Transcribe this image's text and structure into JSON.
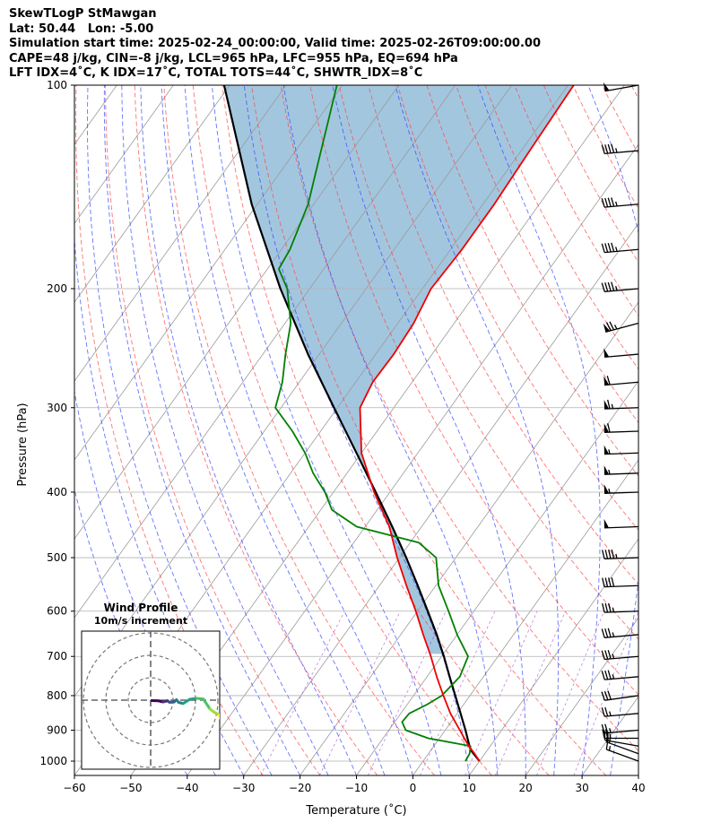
{
  "header": {
    "lines": [
      "SkewTLogP StMawgan",
      "Lat: 50.44   Lon: -5.00",
      "Simulation start time: 2025-02-24_00:00:00, Valid time: 2025-02-26T09:00:00.00",
      "CAPE=48 j/kg, CIN=-8 j/kg, LCL=965 hPa, LFC=955 hPa, EQ=694 hPa",
      "LFT IDX=4$^\\circ$C, K IDX=17$^\\circ$C, TOTAL TOTS=44$^\\circ$C, SHWTR_IDX=8$^\\circ$C"
    ]
  },
  "colors": {
    "temperature": "#ee0000",
    "dewpoint": "#008000",
    "parcel": "#000000",
    "cape_fill": "#a3c6df",
    "dry_adiabat": "#ff4444",
    "moist_adiabat": "#3344ff",
    "isotherm": "#9a9a9a",
    "mixing_ratio": "#9933cc"
  },
  "chart_data": {
    "type": "line",
    "xlabel": "Temperature ($^\\circ$C)",
    "ylabel": "Pressure (hPa)",
    "xlim": [
      -60,
      40
    ],
    "ylim": [
      1050,
      100
    ],
    "y_scale": "log",
    "x_ticks": [
      -60,
      -50,
      -40,
      -30,
      -20,
      -10,
      0,
      10,
      20,
      30,
      40
    ],
    "y_ticks": [
      100,
      200,
      300,
      400,
      500,
      600,
      700,
      800,
      900,
      1000
    ],
    "grid": true,
    "series": [
      {
        "key": "temperature",
        "pressure": [
          1000,
          975,
          950,
          925,
          900,
          850,
          800,
          750,
          700,
          650,
          600,
          550,
          500,
          450,
          400,
          350,
          300,
          275,
          250,
          225,
          200,
          175,
          150,
          125,
          100
        ],
        "temperature": [
          10.0,
          8.2,
          6.2,
          4.4,
          2.6,
          -1.2,
          -4.7,
          -8.3,
          -11.9,
          -16.0,
          -20.3,
          -25.2,
          -30.4,
          -35.7,
          -42.8,
          -50.0,
          -56.0,
          -57.0,
          -56.8,
          -57.2,
          -58.5,
          -58.0,
          -58.0,
          -58.5,
          -59.0
        ]
      },
      {
        "key": "dewpoint",
        "pressure": [
          1000,
          975,
          950,
          925,
          900,
          875,
          850,
          825,
          800,
          750,
          700,
          650,
          600,
          550,
          500,
          475,
          450,
          425,
          400,
          375,
          350,
          325,
          300,
          275,
          250,
          225,
          200,
          187,
          175,
          150,
          125,
          100
        ],
        "temperature": [
          7.5,
          7.3,
          6.5,
          -2.0,
          -7.0,
          -8.7,
          -8.5,
          -6.5,
          -5.0,
          -4.2,
          -5.3,
          -10.0,
          -14.5,
          -19.5,
          -23.5,
          -28.5,
          -41.5,
          -48.0,
          -51.5,
          -56.0,
          -60.0,
          -65.0,
          -71.0,
          -73.0,
          -76.0,
          -79.0,
          -84.0,
          -88.0,
          -88.5,
          -91.0,
          -95.5,
          -101.0
        ]
      },
      {
        "key": "parcel",
        "pressure": [
          1000,
          965,
          950,
          900,
          850,
          800,
          750,
          700,
          650,
          600,
          550,
          500,
          450,
          400,
          350,
          300,
          250,
          200,
          150,
          100
        ],
        "temperature": [
          10.0,
          7.2,
          6.3,
          3.6,
          0.6,
          -2.6,
          -6.0,
          -9.6,
          -13.6,
          -18.2,
          -23.2,
          -28.8,
          -35.2,
          -42.5,
          -50.9,
          -60.6,
          -72.0,
          -85.2,
          -101.0,
          -121.0
        ]
      }
    ],
    "cape_region": {
      "parcel_temperature_hPa_from": 694,
      "parcel_temperature_hPa_to": 100
    }
  },
  "inset": {
    "title_line1": "Wind Profile",
    "title_line2": "10m/s increment",
    "rings_ms": [
      10,
      20,
      30
    ],
    "hodograph_u": [
      0.5,
      3.5,
      5.5,
      7.5,
      8.5,
      10.5,
      11.5,
      12.5,
      14.5,
      17.5,
      20.5,
      23.5,
      26.5,
      28.5,
      30.5,
      31.5
    ],
    "hodograph_v": [
      -0.2,
      -0.3,
      -0.8,
      -0.3,
      -1.0,
      -0.8,
      0.2,
      -1.0,
      -1.5,
      0.4,
      0.8,
      0.5,
      -4.0,
      -5.5,
      -6.5,
      -9.0
    ]
  },
  "wind_barbs": {
    "pressure": [
      100,
      125,
      150,
      175,
      200,
      225,
      250,
      275,
      300,
      325,
      350,
      375,
      400,
      450,
      500,
      550,
      600,
      650,
      700,
      750,
      800,
      850,
      900,
      925,
      950,
      975,
      1000
    ],
    "speed_kt": [
      50,
      45,
      45,
      45,
      45,
      75,
      50,
      60,
      65,
      60,
      55,
      55,
      55,
      50,
      45,
      40,
      35,
      35,
      35,
      35,
      30,
      25,
      25,
      25,
      20,
      15,
      15
    ],
    "direction_deg": [
      260,
      265,
      265,
      265,
      265,
      255,
      265,
      265,
      268,
      268,
      268,
      268,
      268,
      268,
      268,
      268,
      268,
      265,
      265,
      265,
      262,
      265,
      265,
      270,
      280,
      290,
      290
    ]
  }
}
